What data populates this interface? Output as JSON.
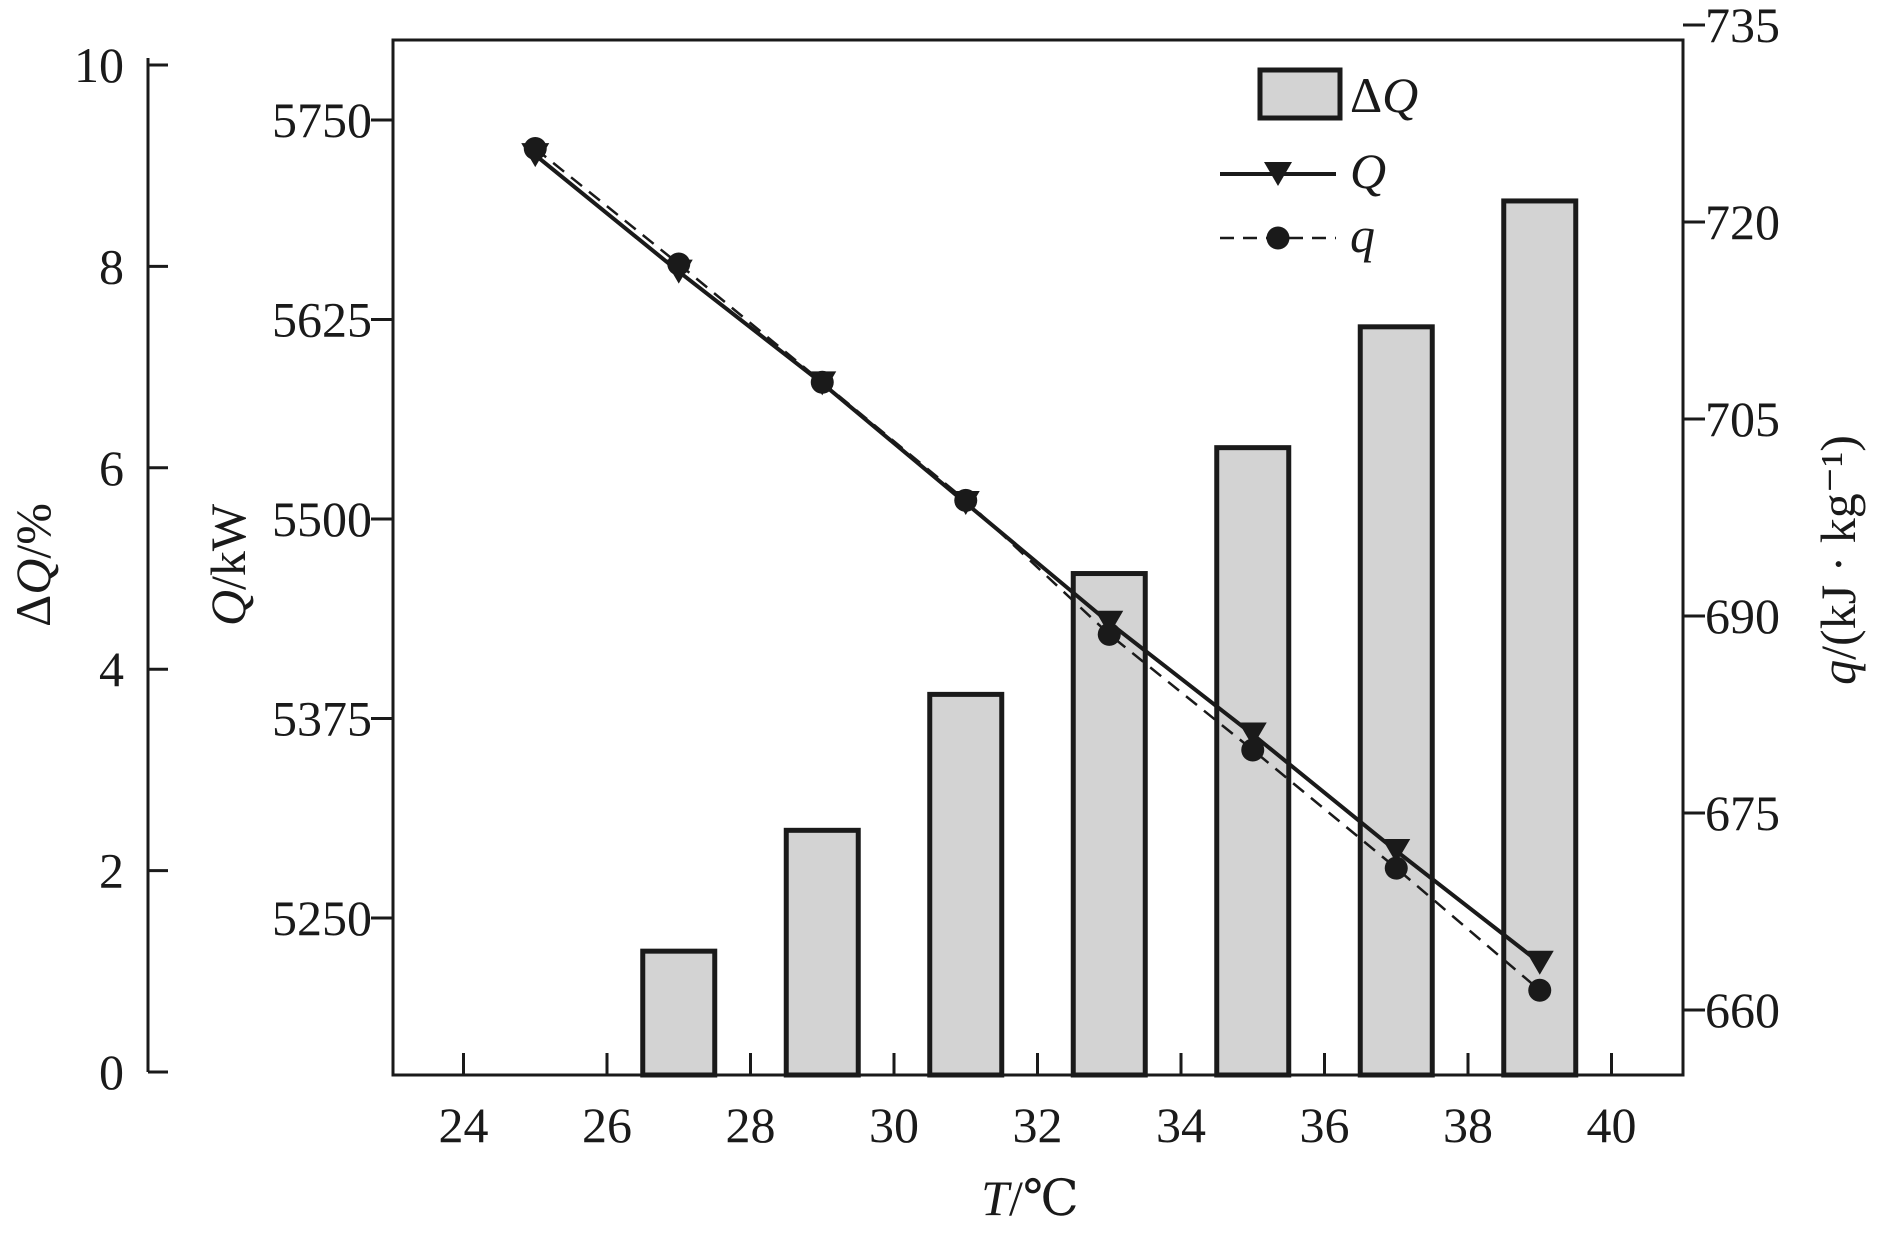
{
  "chart_data": {
    "type": "bar+line",
    "x": [
      25,
      27,
      29,
      31,
      33,
      35,
      37,
      39
    ],
    "xlabel": "T/℃",
    "xlim": [
      23,
      41
    ],
    "xticks": [
      "24",
      "26",
      "28",
      "30",
      "32",
      "34",
      "36",
      "38",
      "40"
    ],
    "bar_series": {
      "name": "ΔQ",
      "values": [
        0,
        1.2,
        2.4,
        3.75,
        4.95,
        6.2,
        7.4,
        8.65
      ],
      "color": "#d3d3d3",
      "edge_color": "#1a1a1a"
    },
    "line_series": [
      {
        "name": "Q",
        "axis": "Q",
        "marker": "triangle-down",
        "linestyle": "solid",
        "values": [
          5728,
          5655,
          5585,
          5510,
          5435,
          5365,
          5292,
          5222
        ]
      },
      {
        "name": "q",
        "axis": "q",
        "marker": "circle",
        "linestyle": "dashed",
        "values": [
          725.6,
          716.8,
          707.8,
          698.8,
          688.6,
          679.8,
          670.8,
          661.5
        ]
      }
    ],
    "axes": {
      "dq": {
        "label": "ΔQ/%",
        "ylim": [
          0,
          10
        ],
        "ticks": [
          "0",
          "2",
          "4",
          "6",
          "8",
          "10"
        ]
      },
      "Q": {
        "label": "Q/kW",
        "ylim": [
          5170,
          5800
        ],
        "ticks": [
          "5250",
          "5375",
          "5500",
          "5625",
          "5750"
        ]
      },
      "q": {
        "label": "q/(kJ · kg⁻¹)",
        "ylim": [
          655,
          735
        ],
        "ticks": [
          "660",
          "675",
          "690",
          "705",
          "720",
          "735"
        ]
      }
    },
    "legend": {
      "placement": "top-right",
      "entries": [
        "ΔQ",
        "Q",
        "q"
      ]
    },
    "grid": false
  }
}
